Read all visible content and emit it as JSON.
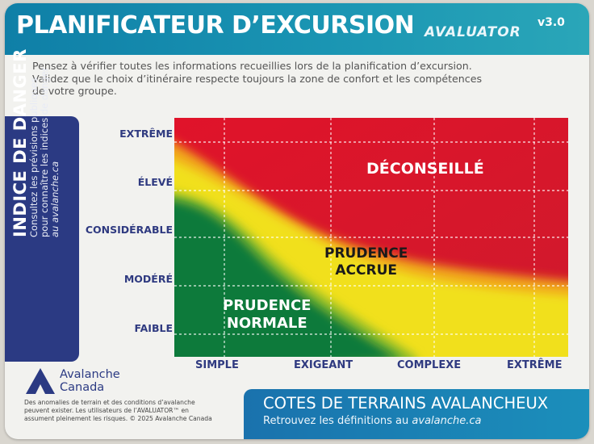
{
  "header": {
    "title": "PLANIFICATEUR D’EXCURSION",
    "brand": "AVALUATOR",
    "version": "v3.0"
  },
  "intro": {
    "line1": "Pensez à vérifier toutes les informations recueillies lors de la planification d’excursion.",
    "line2": "Validez que le choix d’itinéraire respecte toujours la zone de confort et les compétences",
    "line3": "de votre groupe."
  },
  "side_panel": {
    "title": "INDICE DE DANGER",
    "line1": "Consultez les prévisions publiques",
    "line2": "pour connaître les indices de danger",
    "line3": "au avalanche.ca"
  },
  "danger_levels": [
    "EXTRÊME",
    "ÉLEVÉ",
    "CONSIDÉRABLE",
    "MODÉRÉ",
    "FAIBLE"
  ],
  "terrain_classes": [
    "SIMPLE",
    "EXIGEANT",
    "COMPLEXE",
    "EXTRÊME"
  ],
  "zones": {
    "not_recommended": "DÉCONSEILLÉ",
    "extra_caution_1": "PRUDENCE",
    "extra_caution_2": "ACCRUE",
    "normal_caution_1": "PRUDENCE",
    "normal_caution_2": "NORMALE"
  },
  "zone_colors": {
    "red": "#d9182b",
    "yellow": "#f1e01a",
    "green": "#0f7a3a"
  },
  "logo": {
    "icon": "mountain-icon",
    "line1": "Avalanche",
    "line2": "Canada"
  },
  "disclaimer": {
    "line1": "Des anomalies de terrain et des conditions d’avalanche",
    "line2": "peuvent exister. Les utilisateurs de l’AVALUATOR™ en",
    "line3": "assument pleinement les risques. © 2025 Avalanche Canada"
  },
  "bottom_box": {
    "title": "COTES DE TERRAINS AVALANCHEUX",
    "subtitle_prefix": "Retrouvez les définitions au ",
    "subtitle_link": "avalanche.ca"
  }
}
